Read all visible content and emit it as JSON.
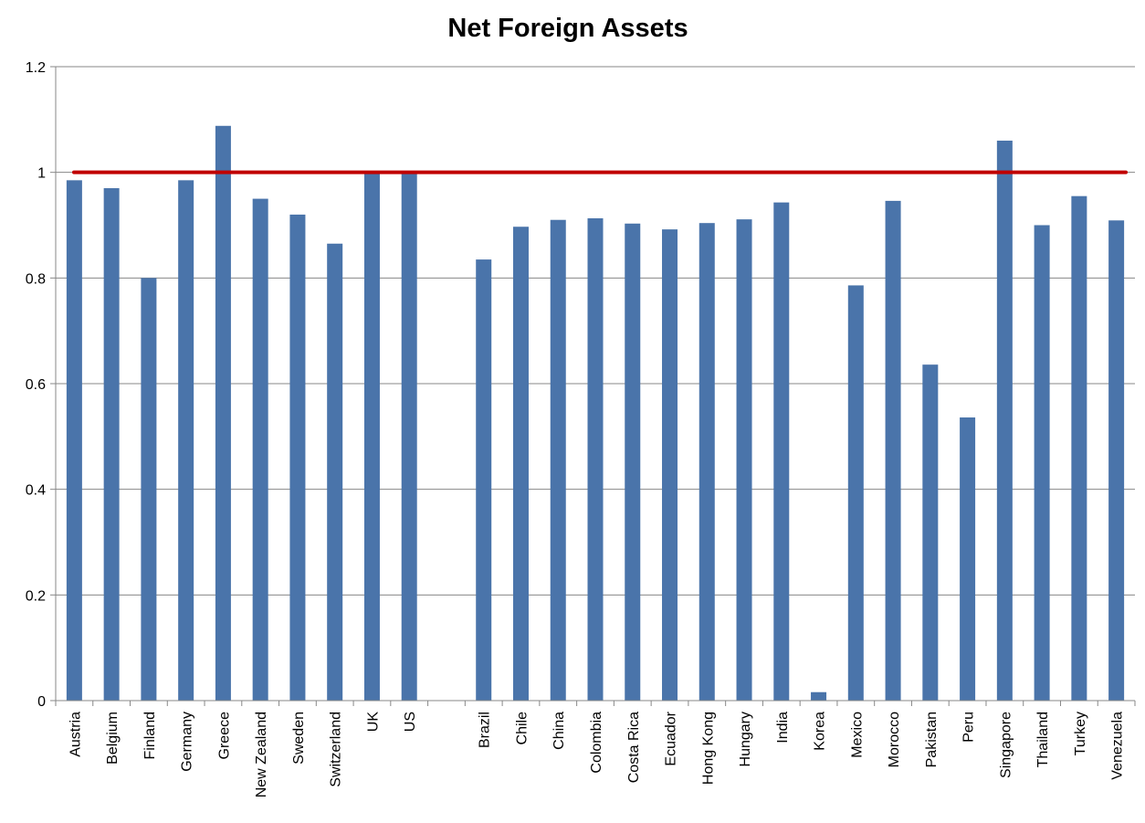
{
  "chart_data": {
    "type": "bar",
    "title": "Net Foreign Assets",
    "xlabel": "",
    "ylabel": "",
    "ylim": [
      0,
      1.2
    ],
    "yticks": [
      "0",
      "0.2",
      "0.4",
      "0.6",
      "0.8",
      "1",
      "1.2"
    ],
    "grid": true,
    "legend": "none",
    "categories": [
      "Austria",
      "Belgium",
      "Finland",
      "Germany",
      "Greece",
      "New Zealand",
      "Sweden",
      "Switzerland",
      "UK",
      "US",
      "",
      "Brazil",
      "Chile",
      "China",
      "Colombia",
      "Costa Rica",
      "Ecuador",
      "Hong Kong",
      "Hungary",
      "India",
      "Korea",
      "Mexico",
      "Morocco",
      "Pakistan",
      "Peru",
      "Singapore",
      "Thailand",
      "Turkey",
      "Venezuela"
    ],
    "values": [
      0.985,
      0.97,
      0.8,
      0.985,
      1.088,
      0.95,
      0.92,
      0.865,
      1.0,
      1.0,
      null,
      0.835,
      0.897,
      0.91,
      0.913,
      0.903,
      0.892,
      0.904,
      0.911,
      0.943,
      0.016,
      0.786,
      0.946,
      0.636,
      0.536,
      1.06,
      0.9,
      0.955,
      0.909
    ],
    "reference_line": {
      "y": 1.0,
      "color": "#c00000"
    },
    "colors": {
      "bar": "#4a74aa",
      "grid": "#878787",
      "axis": "#878787",
      "reference": "#c00000"
    }
  }
}
